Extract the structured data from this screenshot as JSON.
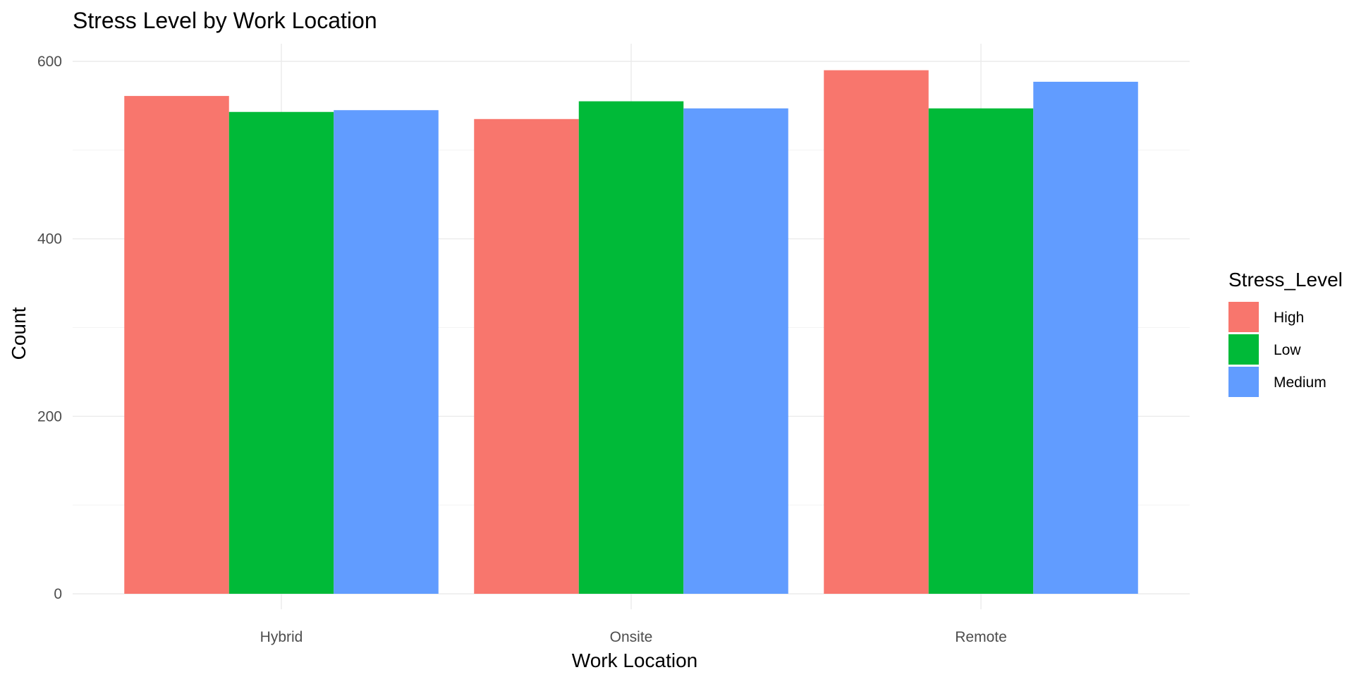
{
  "chart_data": {
    "type": "bar",
    "title": "Stress Level by Work Location",
    "xlabel": "Work Location",
    "ylabel": "Count",
    "categories": [
      "Hybrid",
      "Onsite",
      "Remote"
    ],
    "series": [
      {
        "name": "High",
        "color": "#F8766D",
        "values": [
          561,
          535,
          590
        ]
      },
      {
        "name": "Low",
        "color": "#00BA38",
        "values": [
          543,
          555,
          547
        ]
      },
      {
        "name": "Medium",
        "color": "#619CFF",
        "values": [
          545,
          547,
          577
        ]
      }
    ],
    "ylim": [
      0,
      600
    ],
    "yticks": [
      "0",
      "200",
      "400",
      "600"
    ],
    "legend": {
      "title": "Stress_Level",
      "placement": "right"
    },
    "grid": true
  }
}
